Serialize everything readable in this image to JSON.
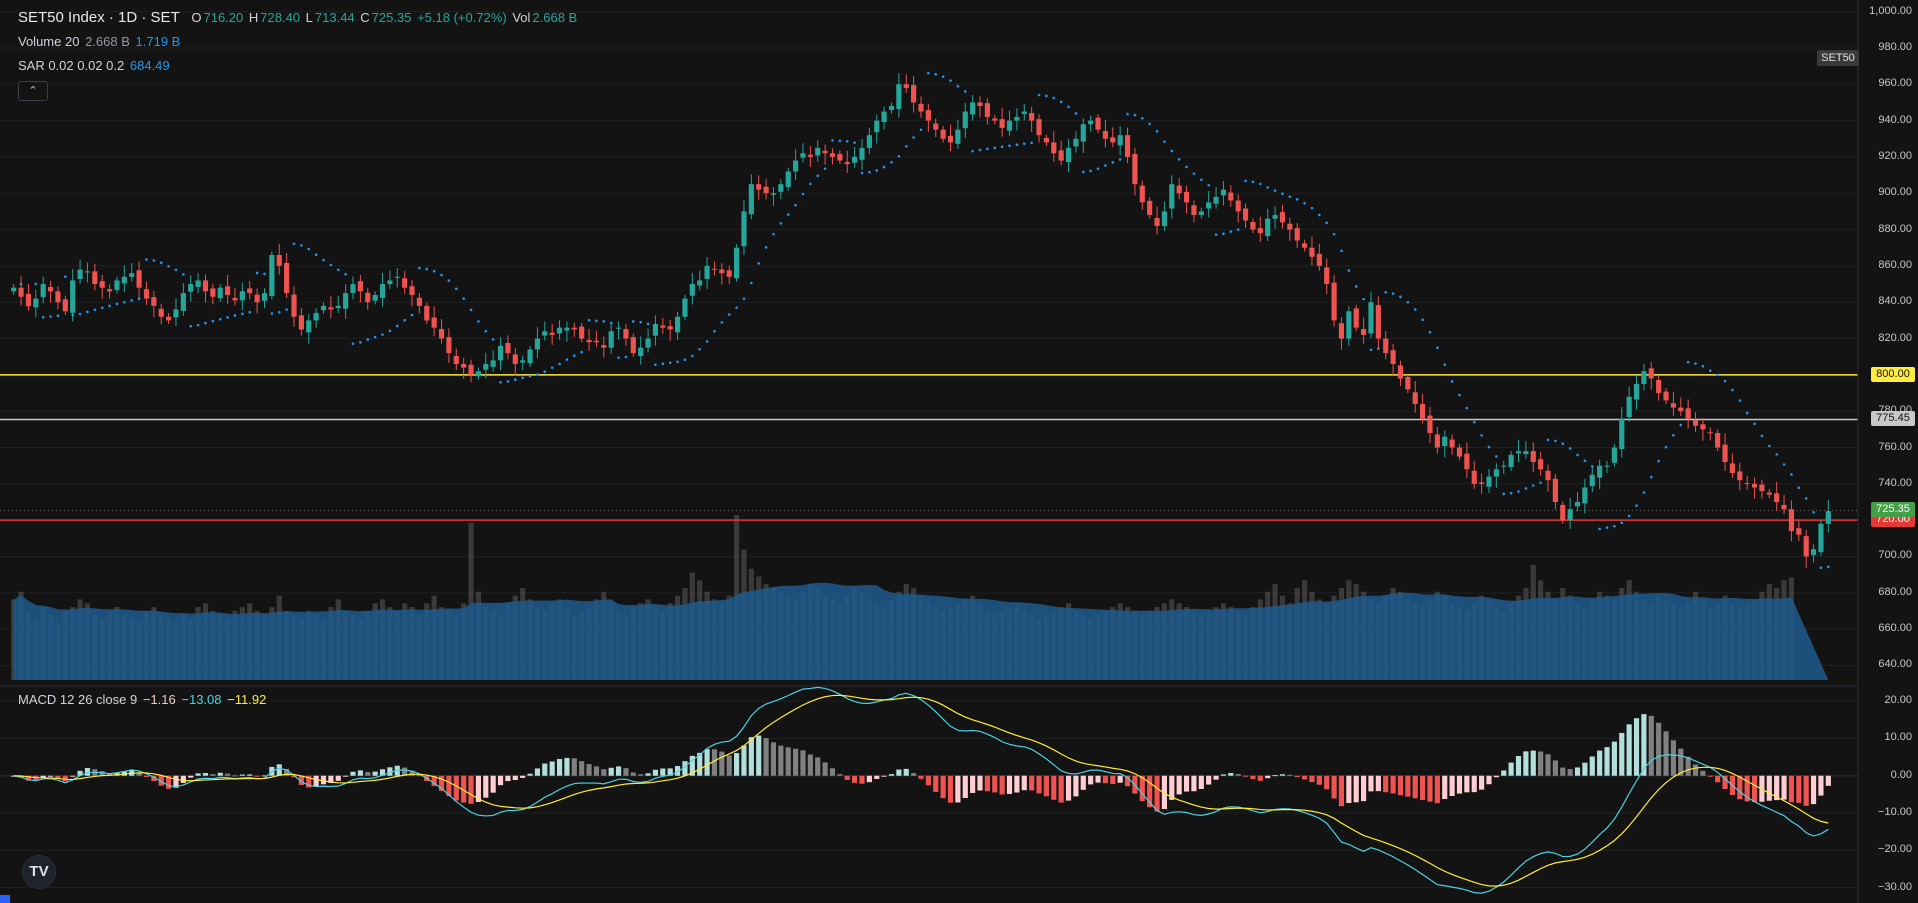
{
  "header": {
    "symbol": "SET50 Index · 1D · SET",
    "open_label": "O",
    "open": "716.20",
    "high_label": "H",
    "high": "728.40",
    "low_label": "L",
    "low": "713.44",
    "close_label": "C",
    "close": "725.35",
    "change": "+5.18 (+0.72%)",
    "vol_label": "Vol",
    "vol": "2.668 B"
  },
  "volume_legend": {
    "name": "Volume 20",
    "value": "2.668 B",
    "ma": "1.719 B"
  },
  "sar_legend": {
    "name": "SAR 0.02 0.02 0.2",
    "value": "684.49"
  },
  "macd_legend": {
    "name": "MACD 12 26 close 9",
    "hist": "−1.16",
    "macd": "−13.08",
    "signal": "−11.92"
  },
  "collapse_icon": "chevron-up-icon",
  "symbol_tag": "SET50",
  "price_axis": [
    "1,000.00",
    "980.00",
    "960.00",
    "940.00",
    "920.00",
    "900.00",
    "880.00",
    "860.00",
    "840.00",
    "820.00",
    "800.00",
    "780.00",
    "760.00",
    "740.00",
    "720.00",
    "700.00",
    "680.00",
    "660.00",
    "640.00"
  ],
  "macd_axis": [
    "20.00",
    "10.00",
    "0.00",
    "−10.00",
    "−20.00",
    "−30.00"
  ],
  "horizontal_lines": [
    {
      "price": 800.0,
      "label": "800.00",
      "color": "#ffeb3b"
    },
    {
      "price": 775.45,
      "label": "775.45",
      "color": "#c8c8c8"
    },
    {
      "price": 720.0,
      "label": "720.00",
      "color": "#e53935"
    }
  ],
  "last_price_tag": {
    "price": 725.35,
    "label": "725.35",
    "color": "#43a047"
  },
  "logo_text": "TV",
  "colors": {
    "up": "#26a69a",
    "down": "#ef5350",
    "sar": "#2196f3",
    "volume_ma": "#1e5a8c",
    "macd_line": "#4dd0e1",
    "signal_line": "#ffeb3b",
    "bg": "#131313"
  },
  "chart_data": {
    "type": "candlestick",
    "price_range": [
      632,
      1002
    ],
    "macd_range": [
      -32,
      23
    ],
    "closes": [
      848,
      843,
      838,
      842,
      850,
      846,
      840,
      835,
      852,
      858,
      857,
      850,
      848,
      846,
      852,
      854,
      856,
      848,
      842,
      838,
      832,
      830,
      836,
      845,
      850,
      852,
      846,
      843,
      848,
      844,
      841,
      846,
      845,
      840,
      845,
      866,
      860,
      845,
      832,
      825,
      830,
      834,
      838,
      836,
      838,
      845,
      850,
      846,
      840,
      844,
      850,
      852,
      854,
      848,
      844,
      838,
      830,
      826,
      820,
      812,
      806,
      804,
      800,
      802,
      806,
      808,
      816,
      812,
      806,
      808,
      814,
      820,
      824,
      822,
      826,
      826,
      825,
      820,
      818,
      818,
      815,
      824,
      826,
      820,
      812,
      815,
      820,
      828,
      826,
      825,
      832,
      842,
      850,
      852,
      860,
      858,
      856,
      854,
      870,
      890,
      905,
      902,
      900,
      900,
      905,
      912,
      918,
      922,
      920,
      925,
      922,
      920,
      918,
      916,
      920,
      925,
      932,
      940,
      945,
      948,
      960,
      958,
      950,
      945,
      940,
      935,
      930,
      928,
      935,
      945,
      950,
      948,
      942,
      940,
      936,
      940,
      942,
      945,
      940,
      932,
      928,
      922,
      918,
      925,
      930,
      938,
      940,
      935,
      930,
      928,
      932,
      920,
      905,
      895,
      888,
      882,
      890,
      905,
      900,
      895,
      888,
      890,
      895,
      898,
      902,
      896,
      890,
      885,
      880,
      878,
      886,
      888,
      884,
      880,
      874,
      870,
      865,
      860,
      850,
      830,
      820,
      835,
      826,
      822,
      840,
      820,
      812,
      806,
      798,
      792,
      784,
      776,
      768,
      760,
      766,
      760,
      755,
      748,
      740,
      740,
      744,
      748,
      750,
      756,
      758,
      758,
      752,
      748,
      742,
      730,
      720,
      726,
      730,
      738,
      745,
      750,
      750,
      760,
      776,
      788,
      795,
      802,
      798,
      790,
      786,
      782,
      780,
      776,
      772,
      770,
      768,
      760,
      752,
      746,
      742,
      740,
      738,
      736,
      734,
      730,
      726,
      714,
      712,
      700,
      704,
      718,
      725
    ],
    "volume_billion": [
      2.1,
      2.3,
      1.8,
      1.6,
      1.9,
      1.7,
      1.5,
      1.8,
      1.9,
      2.1,
      2.0,
      1.7,
      1.6,
      1.8,
      1.9,
      1.7,
      1.6,
      1.5,
      1.8,
      1.9,
      1.7,
      1.6,
      1.5,
      1.7,
      1.6,
      1.9,
      2.0,
      1.8,
      1.7,
      1.6,
      1.8,
      1.9,
      2.0,
      1.8,
      1.7,
      1.9,
      2.2,
      1.8,
      1.7,
      1.6,
      1.8,
      1.7,
      1.6,
      1.9,
      2.1,
      1.8,
      1.7,
      1.6,
      1.8,
      2.0,
      2.1,
      1.9,
      1.8,
      2.0,
      1.9,
      1.7,
      2.0,
      2.2,
      1.9,
      1.8,
      1.7,
      2.0,
      4.1,
      2.3,
      1.9,
      1.8,
      1.7,
      2.0,
      2.2,
      2.4,
      2.1,
      1.9,
      1.8,
      2.0,
      2.1,
      1.9,
      1.7,
      1.8,
      1.9,
      2.1,
      2.3,
      2.0,
      1.8,
      1.7,
      1.9,
      2.0,
      2.1,
      1.9,
      1.8,
      2.0,
      2.2,
      2.4,
      2.8,
      2.6,
      2.3,
      2.1,
      2.0,
      2.2,
      4.3,
      3.4,
      2.9,
      2.7,
      2.5,
      2.4,
      2.3,
      2.2,
      2.1,
      2.3,
      2.5,
      2.4,
      2.2,
      2.1,
      2.0,
      2.2,
      2.4,
      2.3,
      2.1,
      2.0,
      1.9,
      2.1,
      2.3,
      2.5,
      2.4,
      2.2,
      2.0,
      1.9,
      1.8,
      1.9,
      2.0,
      2.1,
      2.2,
      2.0,
      1.8,
      1.7,
      1.8,
      1.9,
      2.0,
      1.8,
      1.7,
      1.6,
      1.7,
      1.8,
      1.9,
      2.0,
      1.8,
      1.7,
      1.6,
      1.7,
      1.8,
      1.9,
      2.0,
      1.9,
      1.8,
      1.7,
      1.8,
      1.9,
      2.0,
      2.1,
      2.0,
      1.9,
      1.8,
      1.7,
      1.8,
      1.9,
      2.0,
      1.9,
      1.8,
      1.7,
      1.9,
      2.1,
      2.3,
      2.5,
      2.2,
      2.0,
      2.4,
      2.6,
      2.3,
      2.1,
      2.0,
      2.2,
      2.4,
      2.6,
      2.5,
      2.3,
      2.1,
      2.0,
      2.2,
      2.4,
      2.3,
      2.1,
      2.0,
      1.9,
      2.1,
      2.3,
      2.2,
      2.0,
      1.9,
      1.8,
      2.0,
      2.2,
      2.1,
      1.9,
      1.8,
      2.0,
      2.2,
      2.4,
      3.0,
      2.6,
      2.3,
      2.1,
      2.4,
      2.2,
      2.0,
      1.9,
      2.1,
      2.3,
      2.2,
      2.1,
      2.4,
      2.6,
      2.3,
      2.1,
      2.0,
      2.2,
      2.1,
      2.0,
      1.9,
      2.0,
      2.3,
      2.1,
      1.9,
      2.0,
      2.2,
      2.0,
      1.9,
      2.0,
      2.1,
      2.3,
      2.5,
      2.4,
      2.6,
      2.668
    ]
  }
}
